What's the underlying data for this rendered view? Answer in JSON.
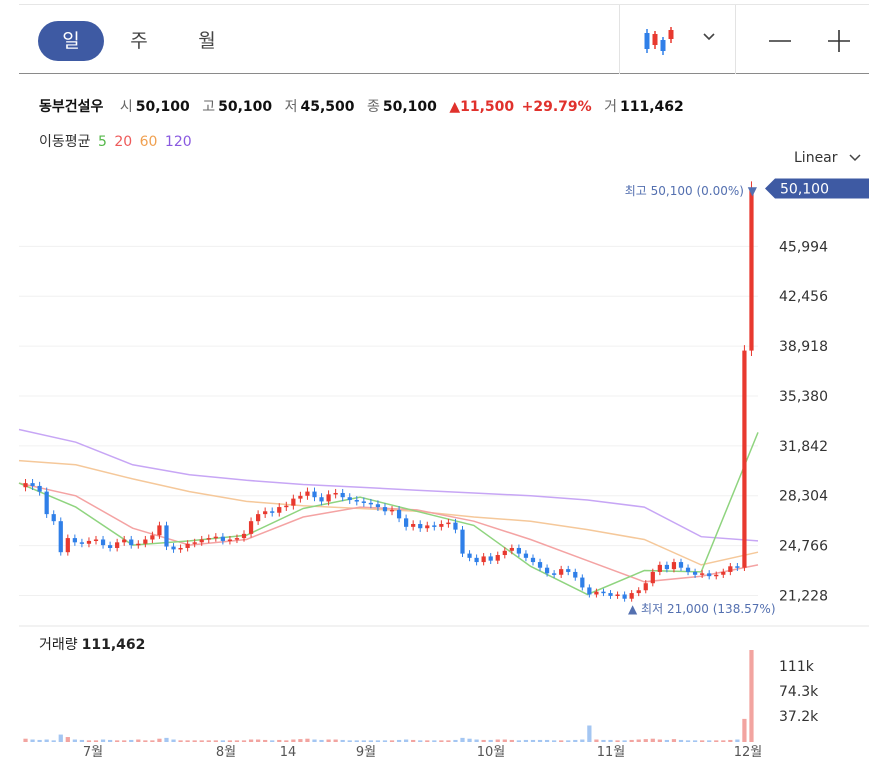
{
  "toolbar": {
    "periods": [
      {
        "label": "일",
        "active": true
      },
      {
        "label": "주",
        "active": false
      },
      {
        "label": "월",
        "active": false
      }
    ],
    "chart_type_icon": "candlestick-icon",
    "dropdown_icon": "chevron-down-icon",
    "zoom_out_icon": "minus-icon",
    "zoom_in_icon": "plus-icon"
  },
  "quote": {
    "name": "동부건설우",
    "open_label": "시",
    "open": "50,100",
    "high_label": "고",
    "high": "50,100",
    "low_label": "저",
    "low": "45,500",
    "close_label": "종",
    "close": "50,100",
    "change": "▲11,500",
    "change_pct": "+29.79%",
    "volume_label": "거",
    "volume": "111,462"
  },
  "moving_average": {
    "label": "이동평균",
    "periods": [
      {
        "label": "5",
        "color": "#55b84a"
      },
      {
        "label": "20",
        "color": "#ee5a5a"
      },
      {
        "label": "60",
        "color": "#f0a050"
      },
      {
        "label": "120",
        "color": "#8a5ae0"
      }
    ]
  },
  "scale_selector": "Linear",
  "volume_panel": {
    "label": "거래량",
    "value": "111,462"
  },
  "colors": {
    "up": "#e8392f",
    "down": "#2f7fe8",
    "accent": "#3e5aa3"
  },
  "chart_data": {
    "type": "candlestick",
    "y_ticks": [
      50100,
      45994,
      42456,
      38918,
      35380,
      31842,
      28304,
      24766,
      21228
    ],
    "y_tick_labels": [
      "50,100",
      "45,994",
      "42,456",
      "38,918",
      "35,380",
      "31,842",
      "28,304",
      "24,766",
      "21,228"
    ],
    "current_price_label": "50,100",
    "high_annotation": "최고 50,100 (0.00%) ▼",
    "low_annotation": "▲ 최저 21,000 (138.57%)",
    "x_labels": [
      "7월",
      "8월",
      "14",
      "9월",
      "10월",
      "11월",
      "12월"
    ],
    "volume_ticks": [
      "111k",
      "74.3k",
      "37.2k"
    ],
    "ylim": [
      20200,
      50700
    ],
    "volume_max": 111462,
    "closes": [
      29200,
      29000,
      28600,
      27000,
      26500,
      24300,
      25300,
      25000,
      24900,
      25100,
      25200,
      24800,
      24600,
      25000,
      25200,
      24800,
      24900,
      25200,
      25500,
      26200,
      24700,
      24500,
      24600,
      24900,
      25000,
      25200,
      25300,
      25400,
      25100,
      25200,
      25300,
      25600,
      26500,
      27000,
      27200,
      27100,
      27500,
      27600,
      28100,
      28300,
      28600,
      28200,
      27900,
      28400,
      28500,
      28200,
      28000,
      27900,
      27800,
      27700,
      27500,
      27200,
      27300,
      26700,
      26100,
      26300,
      26000,
      26200,
      26100,
      26300,
      26400,
      25900,
      24200,
      23900,
      23600,
      24000,
      23700,
      24100,
      24400,
      24600,
      24200,
      23900,
      23600,
      23200,
      22800,
      22700,
      23100,
      22900,
      22500,
      21800,
      21300,
      21500,
      21400,
      21200,
      21300,
      21000,
      21400,
      21600,
      22100,
      22900,
      23400,
      23100,
      23600,
      23200,
      22900,
      22700,
      22800,
      22600,
      22700,
      22900,
      23300,
      23200,
      38600,
      50100
    ],
    "volumes": [
      4000,
      3000,
      2500,
      3000,
      2000,
      9000,
      6000,
      3000,
      2500,
      2000,
      2000,
      3000,
      2500,
      2000,
      2000,
      2500,
      3000,
      2000,
      2000,
      4000,
      5000,
      3000,
      2000,
      2000,
      2000,
      2000,
      2000,
      2000,
      2000,
      2000,
      2000,
      2000,
      3000,
      3000,
      2500,
      2000,
      2500,
      2000,
      3000,
      3500,
      4000,
      3000,
      2500,
      3000,
      3000,
      2500,
      2000,
      2000,
      2000,
      2000,
      2000,
      2000,
      2000,
      2500,
      3000,
      2500,
      2000,
      2000,
      2000,
      2000,
      2000,
      2500,
      5000,
      4000,
      3000,
      2500,
      2500,
      3000,
      3000,
      2500,
      2000,
      2500,
      2500,
      2500,
      2500,
      2000,
      2000,
      2000,
      2500,
      3000,
      20000,
      3000,
      2500,
      2500,
      2000,
      2000,
      2500,
      3000,
      3500,
      4000,
      3000,
      2500,
      3500,
      2500,
      2000,
      2000,
      2000,
      2000,
      2000,
      2000,
      2500,
      3000,
      28000,
      111462
    ],
    "ma_series": [
      {
        "period": "120",
        "values": [
          33000,
          32100,
          30500,
          29800,
          29400,
          29100,
          28900,
          28700,
          28500,
          28300,
          28000,
          27500,
          25400,
          25100
        ]
      },
      {
        "period": "60",
        "values": [
          30800,
          30500,
          29500,
          28600,
          27900,
          27600,
          27400,
          27200,
          26800,
          26500,
          25900,
          25200,
          23400,
          24300
        ]
      },
      {
        "period": "20",
        "values": [
          29200,
          28300,
          26000,
          24800,
          25200,
          26800,
          27500,
          27300,
          26500,
          25200,
          23700,
          22200,
          22600,
          23400
        ]
      },
      {
        "period": "5",
        "values": [
          29200,
          27500,
          24800,
          25100,
          25500,
          27400,
          28200,
          27200,
          26200,
          23300,
          21300,
          23000,
          22900,
          32800
        ]
      }
    ]
  }
}
